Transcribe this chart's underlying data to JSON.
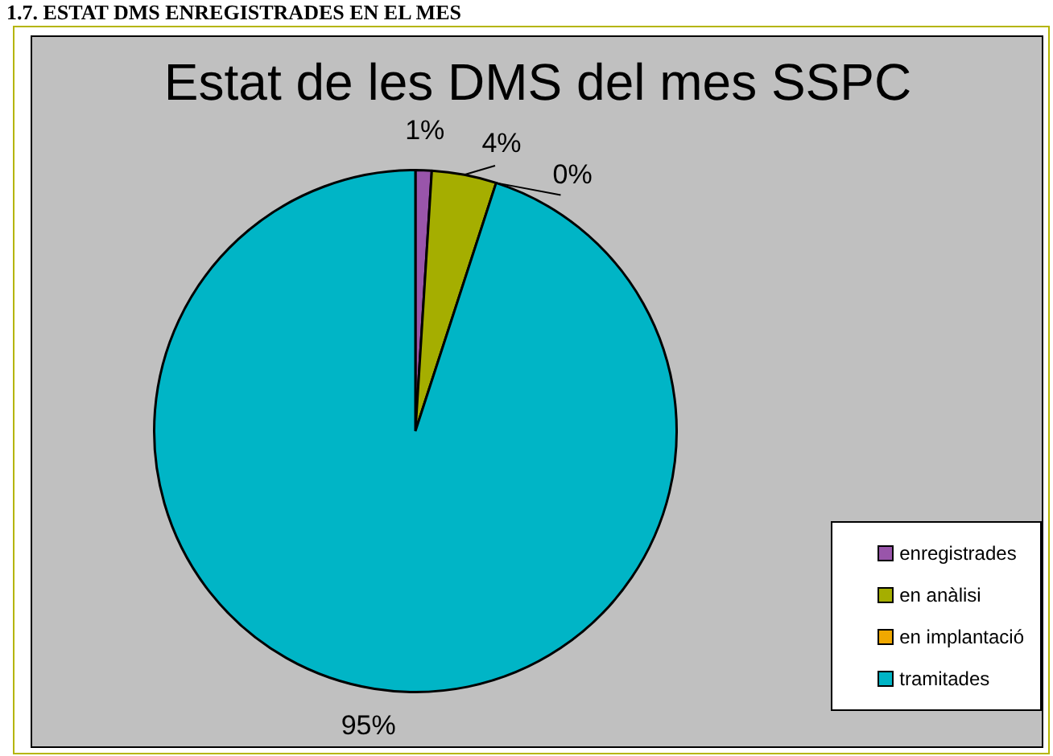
{
  "chart_data": {
    "type": "pie",
    "title": "Estat de les DMS del mes SSPC",
    "annotations": [
      "1.7. ESTAT DMS ENREGISTRADES EN EL MES"
    ],
    "categories": [
      "enregistrades",
      "en anàlisi",
      "en implantació",
      "tramitades"
    ],
    "values": [
      1,
      4,
      0,
      95
    ],
    "value_labels": [
      "1%",
      "4%",
      "0%",
      "95%"
    ],
    "colors": [
      "#9955aa",
      "#a5ae00",
      "#f0a800",
      "#00b5c6"
    ],
    "legend": "bottom right"
  }
}
